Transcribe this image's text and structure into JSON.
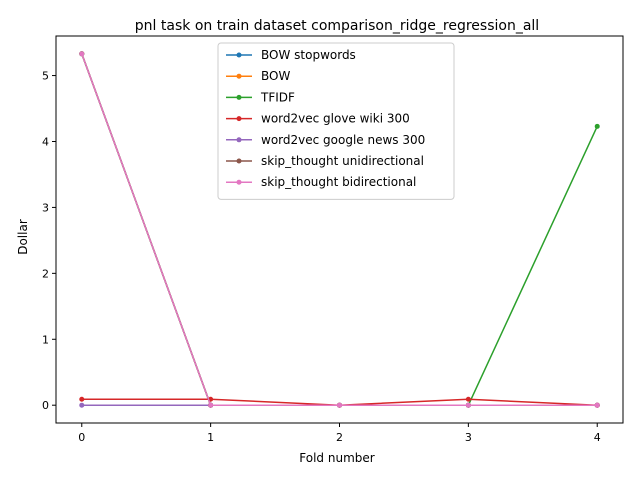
{
  "chart_data": {
    "type": "line",
    "title": "pnl task on train dataset comparison_ridge_regression_all",
    "xlabel": "Fold number",
    "ylabel": "Dollar",
    "x": [
      0,
      1,
      2,
      3,
      4
    ],
    "xticks": [
      "0",
      "1",
      "2",
      "3",
      "4"
    ],
    "yticks": [
      "0",
      "1",
      "2",
      "3",
      "4",
      "5"
    ],
    "xlim": [
      -0.2,
      4.2
    ],
    "ylim": [
      -0.27,
      5.6
    ],
    "grid": false,
    "legend_position": "top-center",
    "series": [
      {
        "name": "BOW stopwords",
        "color": "#1f77b4",
        "values": [
          5.33,
          0.0,
          0.0,
          0.0,
          0.0
        ]
      },
      {
        "name": "BOW",
        "color": "#ff7f0e",
        "values": [
          5.33,
          0.0,
          0.0,
          0.0,
          0.0
        ]
      },
      {
        "name": "TFIDF",
        "color": "#2ca02c",
        "values": [
          5.33,
          0.0,
          0.0,
          0.0,
          4.23
        ]
      },
      {
        "name": "word2vec glove wiki 300",
        "color": "#d62728",
        "values": [
          0.09,
          0.09,
          0.0,
          0.09,
          0.0
        ]
      },
      {
        "name": "word2vec google news 300",
        "color": "#9467bd",
        "values": [
          0.0,
          0.0,
          0.0,
          0.0,
          0.0
        ]
      },
      {
        "name": "skip_thought unidirectional",
        "color": "#8c564b",
        "values": [
          5.33,
          0.0,
          0.0,
          0.0,
          0.0
        ]
      },
      {
        "name": "skip_thought bidirectional",
        "color": "#e377c2",
        "values": [
          5.33,
          0.0,
          0.0,
          0.0,
          0.0
        ]
      }
    ]
  }
}
